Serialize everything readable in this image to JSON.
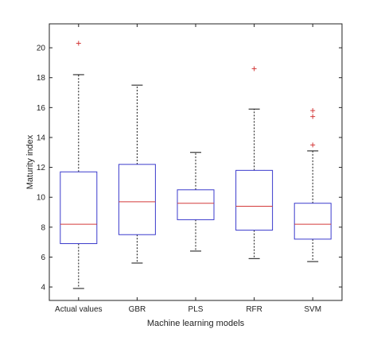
{
  "chart_data": {
    "type": "box",
    "title": "",
    "xlabel": "Machine learning models",
    "ylabel": "Maturity index",
    "ylim": [
      3.1,
      21.6
    ],
    "yticks": [
      4,
      6,
      8,
      10,
      12,
      14,
      16,
      18,
      20
    ],
    "grid": false,
    "categories": [
      "Actual values",
      "GBR",
      "PLS",
      "RFR",
      "SVM"
    ],
    "boxes": [
      {
        "category": "Actual values",
        "whisker_low": 3.9,
        "q1": 6.9,
        "median": 8.2,
        "q3": 11.7,
        "whisker_high": 18.2,
        "outliers": [
          20.3
        ]
      },
      {
        "category": "GBR",
        "whisker_low": 5.6,
        "q1": 7.5,
        "median": 9.7,
        "q3": 12.2,
        "whisker_high": 17.5,
        "outliers": []
      },
      {
        "category": "PLS",
        "whisker_low": 6.4,
        "q1": 8.5,
        "median": 9.6,
        "q3": 10.5,
        "whisker_high": 13.0,
        "outliers": []
      },
      {
        "category": "RFR",
        "whisker_low": 5.9,
        "q1": 7.8,
        "median": 9.4,
        "q3": 11.8,
        "whisker_high": 15.9,
        "outliers": [
          18.6
        ]
      },
      {
        "category": "SVM",
        "whisker_low": 5.7,
        "q1": 7.2,
        "median": 8.2,
        "q3": 9.6,
        "whisker_high": 13.1,
        "outliers": [
          13.5,
          15.4,
          15.8
        ]
      }
    ],
    "colors": {
      "box": "#3b3bcc",
      "median": "#d43a3a",
      "whisker": "#111111",
      "outlier": "#d43a3a",
      "axes": "#222222"
    }
  }
}
